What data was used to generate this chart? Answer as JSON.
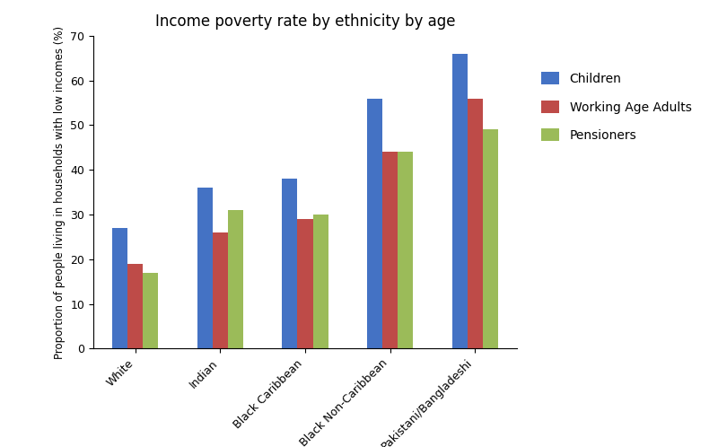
{
  "title": "Income poverty rate by ethnicity by age",
  "ylabel": "Proportion of people living in households with low incomes (%)",
  "categories": [
    "White",
    "Indian",
    "Black Caribbean",
    "Black Non-Caribbean",
    "Pakistani/Bangladeshi"
  ],
  "series": {
    "Children": [
      27,
      36,
      38,
      56,
      66
    ],
    "Working Age Adults": [
      19,
      26,
      29,
      44,
      56
    ],
    "Pensioners": [
      17,
      31,
      30,
      44,
      49
    ]
  },
  "colors": {
    "Children": "#4472C4",
    "Working Age Adults": "#BE4B48",
    "Pensioners": "#9BBB59"
  },
  "ylim": [
    0,
    70
  ],
  "yticks": [
    0,
    10,
    20,
    30,
    40,
    50,
    60,
    70
  ],
  "background_color": "#ffffff",
  "title_fontsize": 12,
  "axis_label_fontsize": 8.5,
  "tick_label_fontsize": 9,
  "legend_fontsize": 10,
  "bar_width": 0.18,
  "x_tick_rotation": 45
}
